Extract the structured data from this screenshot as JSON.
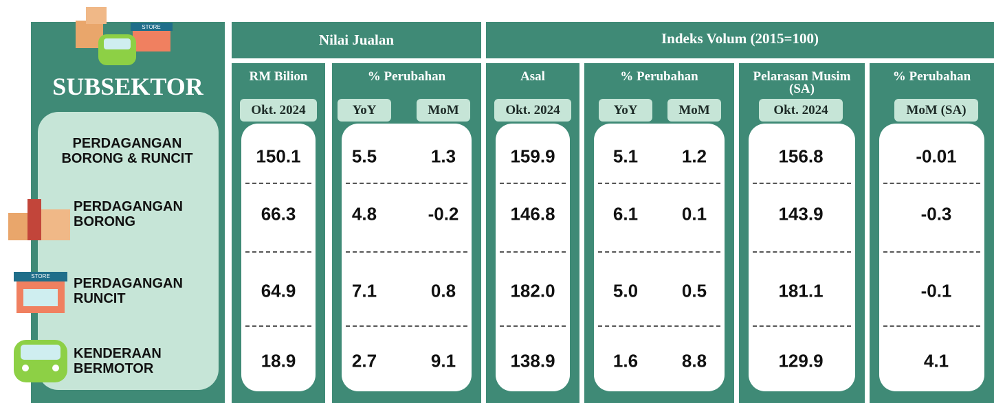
{
  "header": {
    "subsektor": "SUBSEKTOR",
    "nilai_jualan": "Nilai Jualan",
    "indeks_volum": "Indeks Volum (2015=100)",
    "store_sign": "STORE"
  },
  "columns": [
    {
      "title": "RM Bilion",
      "sub": [
        "Okt. 2024"
      ]
    },
    {
      "title": "% Perubahan",
      "sub": [
        "YoY",
        "MoM"
      ]
    },
    {
      "title": "Asal",
      "sub": [
        "Okt. 2024"
      ]
    },
    {
      "title": "% Perubahan",
      "sub": [
        "YoY",
        "MoM"
      ]
    },
    {
      "title": "Pelarasan Musim (SA)",
      "sub": [
        "Okt. 2024"
      ]
    },
    {
      "title": "% Perubahan",
      "sub": [
        "MoM (SA)"
      ]
    }
  ],
  "rows": [
    {
      "label": "PERDAGANGAN BORONG & RUNCIT",
      "values": [
        "150.1",
        "5.5",
        "1.3",
        "159.9",
        "5.1",
        "1.2",
        "156.8",
        "-0.01"
      ]
    },
    {
      "label": "PERDAGANGAN BORONG",
      "values": [
        "66.3",
        "4.8",
        "-0.2",
        "146.8",
        "6.1",
        "0.1",
        "143.9",
        "-0.3"
      ]
    },
    {
      "label": "PERDAGANGAN RUNCIT",
      "values": [
        "64.9",
        "7.1",
        "0.8",
        "182.0",
        "5.0",
        "0.5",
        "181.1",
        "-0.1"
      ]
    },
    {
      "label": "KENDERAAN BERMOTOR",
      "values": [
        "18.9",
        "2.7",
        "9.1",
        "138.9",
        "1.6",
        "8.8",
        "129.9",
        "4.1"
      ]
    }
  ]
}
